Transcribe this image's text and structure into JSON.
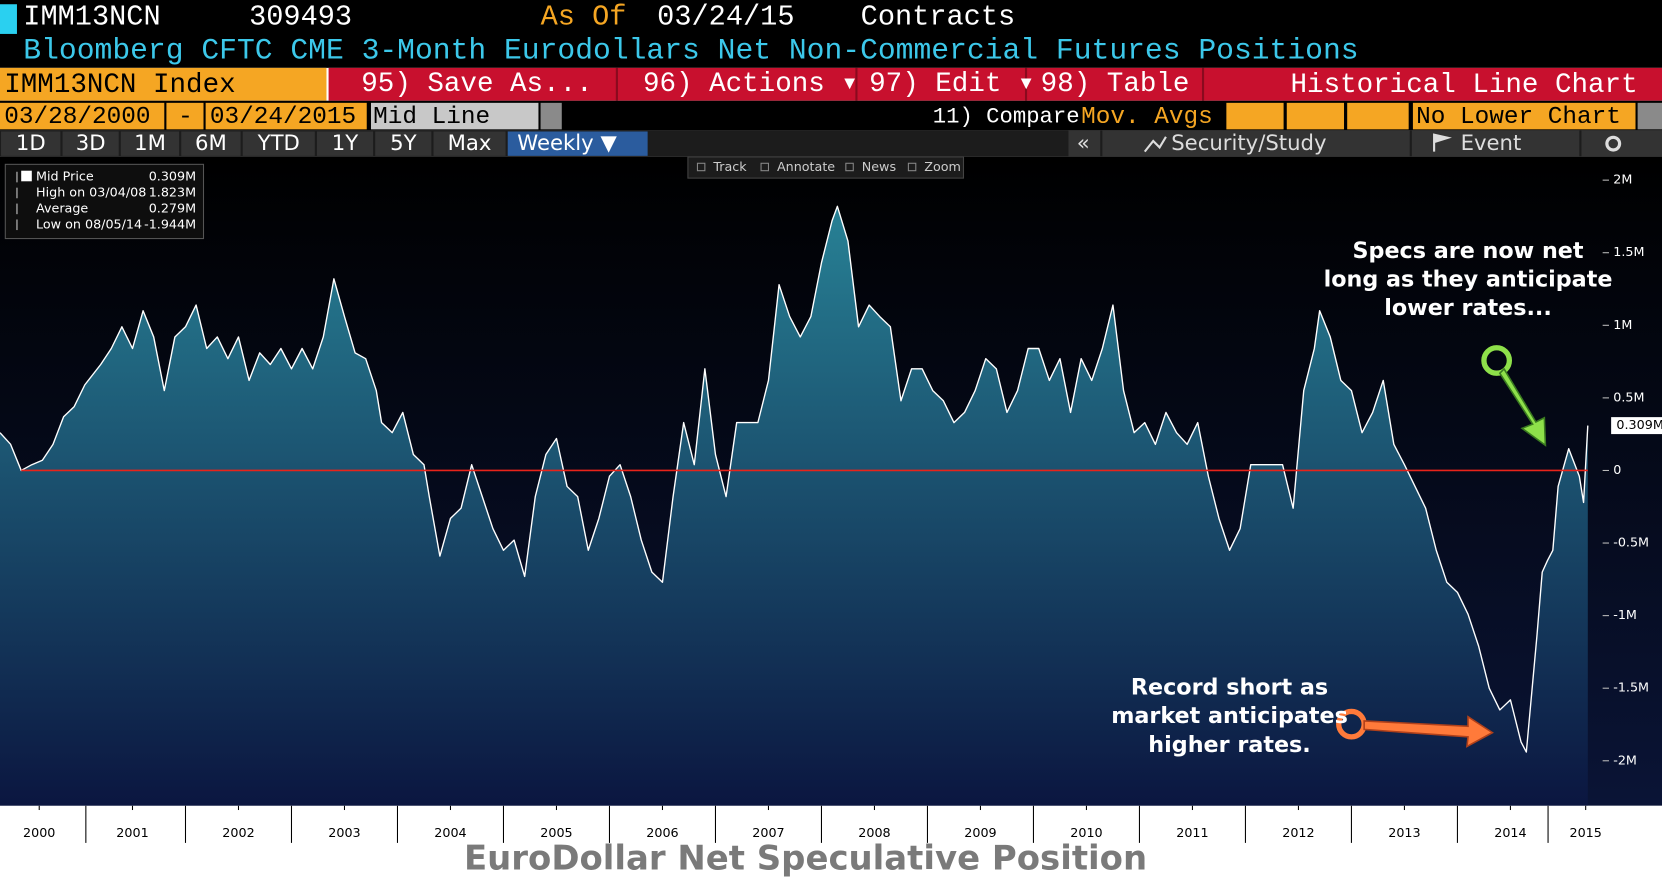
{
  "header": {
    "ticker": "IMM13NCN",
    "value": "309493",
    "as_of_label": "As Of",
    "as_of_date": "03/24/15",
    "units": "Contracts",
    "description": "Bloomberg CFTC CME 3-Month Eurodollars Net Non-Commercial Futures Positions"
  },
  "toolbar": {
    "security": "IMM13NCN Index",
    "menu": [
      "95) Save As...",
      "96) Actions ▾",
      "97) Edit ▾",
      "98) Table"
    ],
    "chart_name": "Historical Line Chart"
  },
  "controls": {
    "start_date": "03/28/2000",
    "separator": "-",
    "end_date": "03/24/2015",
    "mode": "Mid Line",
    "compare": "11) Compare",
    "compare_value": "Mov. Avgs",
    "lower_chart": "No Lower Chart"
  },
  "ranges": [
    "1D",
    "3D",
    "1M",
    "6M",
    "YTD",
    "1Y",
    "5Y",
    "Max",
    "Weekly ▼"
  ],
  "panel": {
    "collapse": "«",
    "security_study": "Security/Study",
    "event": "Event"
  },
  "chart_tools": [
    "Track",
    "Annotate",
    "News",
    "Zoom"
  ],
  "chart_data": {
    "type": "area",
    "title": "EuroDollar Net Speculative Position",
    "stats": [
      {
        "label": "Mid Price",
        "value": "0.309M"
      },
      {
        "label": "High on 03/04/08",
        "value": "1.823M"
      },
      {
        "label": "Average",
        "value": "0.279M"
      },
      {
        "label": "Low on 08/05/14",
        "value": "-1.944M"
      }
    ],
    "last_value": {
      "value": 0.309,
      "label": "0.309M"
    },
    "annotations": [
      {
        "lines": [
          "Specs are now net",
          "long as they anticipate",
          "lower rates..."
        ]
      },
      {
        "lines": [
          "Record short as",
          "market anticipates",
          "higher rates."
        ]
      }
    ],
    "xlim": [
      2000.25,
      2015.23
    ],
    "xticks": [
      {
        "value": 2000.62,
        "label": "2000"
      },
      {
        "value": 2001.5,
        "label": "2001"
      },
      {
        "value": 2002.5,
        "label": "2002"
      },
      {
        "value": 2003.5,
        "label": "2003"
      },
      {
        "value": 2004.5,
        "label": "2004"
      },
      {
        "value": 2005.5,
        "label": "2005"
      },
      {
        "value": 2006.5,
        "label": "2006"
      },
      {
        "value": 2007.5,
        "label": "2007"
      },
      {
        "value": 2008.5,
        "label": "2008"
      },
      {
        "value": 2009.5,
        "label": "2009"
      },
      {
        "value": 2010.5,
        "label": "2010"
      },
      {
        "value": 2011.5,
        "label": "2011"
      },
      {
        "value": 2012.5,
        "label": "2012"
      },
      {
        "value": 2013.5,
        "label": "2013"
      },
      {
        "value": 2014.5,
        "label": "2014"
      },
      {
        "value": 2015.21,
        "label": "2015"
      }
    ],
    "ylim": [
      -2.31,
      2.16
    ],
    "yticks": [
      {
        "value": 2,
        "label": "2M"
      },
      {
        "value": 1.5,
        "label": "1.5M"
      },
      {
        "value": 1,
        "label": "1M"
      },
      {
        "value": 0.5,
        "label": "0.5M"
      },
      0,
      {
        "value": -0.5,
        "label": "-0.5M"
      },
      {
        "value": -1,
        "label": "-1M"
      },
      {
        "value": -1.5,
        "label": "-1.5M"
      },
      {
        "value": -2,
        "label": "-2M"
      }
    ],
    "reference_line_color": "#e8231a",
    "line_color": "#ffffff",
    "fill_top_color": "#2a8a9c",
    "fill_bottom_color": "#0b1640",
    "series": [
      {
        "name": "Mid Price",
        "x": [
          2000.25,
          2000.35,
          2000.45,
          2000.55,
          2000.65,
          2000.75,
          2000.85,
          2000.95,
          2001.05,
          2001.2,
          2001.3,
          2001.4,
          2001.5,
          2001.6,
          2001.7,
          2001.8,
          2001.9,
          2002.0,
          2002.1,
          2002.2,
          2002.3,
          2002.4,
          2002.5,
          2002.6,
          2002.7,
          2002.8,
          2002.9,
          2003.0,
          2003.1,
          2003.2,
          2003.3,
          2003.4,
          2003.5,
          2003.6,
          2003.7,
          2003.8,
          2003.85,
          2003.95,
          2004.05,
          2004.15,
          2004.25,
          2004.3,
          2004.4,
          2004.5,
          2004.6,
          2004.7,
          2004.8,
          2004.9,
          2005.0,
          2005.1,
          2005.2,
          2005.3,
          2005.4,
          2005.5,
          2005.6,
          2005.7,
          2005.8,
          2005.9,
          2006.0,
          2006.1,
          2006.2,
          2006.3,
          2006.4,
          2006.5,
          2006.6,
          2006.7,
          2006.8,
          2006.9,
          2007.0,
          2007.1,
          2007.2,
          2007.3,
          2007.4,
          2007.5,
          2007.6,
          2007.7,
          2007.8,
          2007.9,
          2008.0,
          2008.1,
          2008.15,
          2008.25,
          2008.35,
          2008.45,
          2008.55,
          2008.65,
          2008.75,
          2008.85,
          2008.95,
          2009.05,
          2009.15,
          2009.25,
          2009.35,
          2009.45,
          2009.55,
          2009.65,
          2009.75,
          2009.85,
          2009.95,
          2010.05,
          2010.15,
          2010.25,
          2010.35,
          2010.45,
          2010.55,
          2010.65,
          2010.75,
          2010.85,
          2010.95,
          2011.05,
          2011.15,
          2011.25,
          2011.35,
          2011.45,
          2011.55,
          2011.65,
          2011.75,
          2011.85,
          2011.95,
          2012.05,
          2012.15,
          2012.25,
          2012.35,
          2012.45,
          2012.55,
          2012.65,
          2012.7,
          2012.8,
          2012.9,
          2013.0,
          2013.1,
          2013.2,
          2013.3,
          2013.4,
          2013.5,
          2013.6,
          2013.7,
          2013.8,
          2013.9,
          2014.0,
          2014.1,
          2014.2,
          2014.3,
          2014.4,
          2014.5,
          2014.6,
          2014.65,
          2014.75,
          2014.8,
          2014.85,
          2014.9,
          2014.95,
          2015.05,
          2015.15,
          2015.19,
          2015.23
        ],
        "values": [
          0.26,
          0.18,
          0,
          0.04,
          0.07,
          0.18,
          0.37,
          0.44,
          0.59,
          0.73,
          0.84,
          0.99,
          0.84,
          1.1,
          0.92,
          0.55,
          0.92,
          0.99,
          1.14,
          0.84,
          0.92,
          0.77,
          0.92,
          0.62,
          0.81,
          0.73,
          0.84,
          0.7,
          0.84,
          0.7,
          0.92,
          1.32,
          1.06,
          0.81,
          0.77,
          0.55,
          0.33,
          0.26,
          0.4,
          0.11,
          0.04,
          -0.18,
          -0.59,
          -0.33,
          -0.26,
          0.04,
          -0.18,
          -0.4,
          -0.55,
          -0.48,
          -0.73,
          -0.18,
          0.11,
          0.22,
          -0.11,
          -0.18,
          -0.55,
          -0.33,
          -0.04,
          0.04,
          -0.18,
          -0.48,
          -0.7,
          -0.77,
          -0.18,
          0.33,
          0.04,
          0.7,
          0.11,
          -0.18,
          0.33,
          0.33,
          0.33,
          0.62,
          1.28,
          1.06,
          0.92,
          1.06,
          1.43,
          1.72,
          1.82,
          1.58,
          0.99,
          1.14,
          1.06,
          0.99,
          0.48,
          0.7,
          0.7,
          0.55,
          0.48,
          0.33,
          0.4,
          0.55,
          0.77,
          0.7,
          0.4,
          0.55,
          0.84,
          0.84,
          0.62,
          0.77,
          0.4,
          0.77,
          0.62,
          0.84,
          1.14,
          0.55,
          0.26,
          0.33,
          0.18,
          0.4,
          0.26,
          0.18,
          0.33,
          -0.04,
          -0.33,
          -0.55,
          -0.4,
          0.04,
          0.04,
          0.04,
          0.04,
          -0.26,
          0.55,
          0.84,
          1.1,
          0.92,
          0.62,
          0.55,
          0.26,
          0.4,
          0.62,
          0.18,
          0.04,
          -0.11,
          -0.26,
          -0.55,
          -0.77,
          -0.84,
          -0.99,
          -1.21,
          -1.5,
          -1.65,
          -1.58,
          -1.87,
          -1.94,
          -1.14,
          -0.7,
          -0.62,
          -0.55,
          -0.11,
          0.15,
          -0.04,
          -0.22,
          0.309
        ]
      }
    ]
  }
}
